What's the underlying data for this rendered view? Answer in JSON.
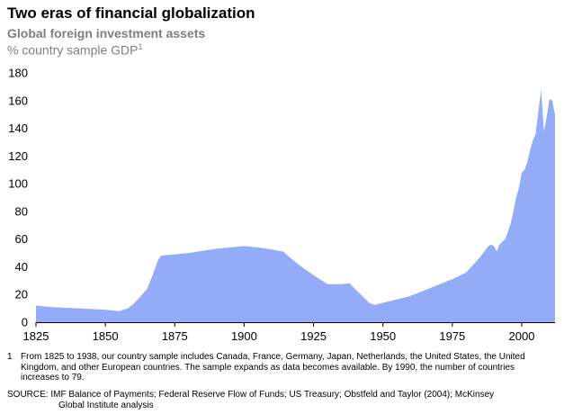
{
  "title": "Two eras of financial globalization",
  "subtitle": "Global foreign investment assets",
  "units": {
    "text": "% country sample GDP",
    "footnote_marker": "1"
  },
  "footnote": {
    "marker": "1",
    "text": "From 1825 to 1938, our country sample includes Canada, France, Germany, Japan, Netherlands, the United States, the United Kingdom, and other European countries. The sample expands as data becomes available. By 1990, the number of countries increases to 79."
  },
  "source": {
    "label": "SOURCE:",
    "line1": "IMF Balance of Payments; Federal Reserve Flow of Funds; US Treasury; Obstfeld and Taylor (2004); McKinsey",
    "line2": "Global Institute analysis"
  },
  "colors": {
    "area": "#94abf7",
    "axis": "#000000",
    "subtitle": "#7f7f7f"
  },
  "chart_data": {
    "type": "area",
    "title": "Two eras of financial globalization",
    "subtitle": "Global foreign investment assets",
    "ylabel": "% country sample GDP",
    "xlim": [
      1825,
      2012
    ],
    "ylim": [
      0,
      180
    ],
    "x_ticks": [
      1825,
      1850,
      1875,
      1900,
      1925,
      1950,
      1975,
      2000
    ],
    "y_ticks": [
      0,
      20,
      40,
      60,
      80,
      100,
      120,
      140,
      160,
      180
    ],
    "grid": false,
    "x": [
      1825,
      1830,
      1840,
      1850,
      1855,
      1858,
      1860,
      1862,
      1865,
      1867,
      1869,
      1870,
      1875,
      1880,
      1885,
      1890,
      1895,
      1900,
      1905,
      1910,
      1914,
      1917,
      1920,
      1925,
      1930,
      1935,
      1938,
      1940,
      1943,
      1945,
      1947,
      1950,
      1955,
      1960,
      1965,
      1970,
      1975,
      1980,
      1985,
      1988,
      1989,
      1990,
      1991,
      1992,
      1993,
      1994,
      1995,
      1996,
      1997,
      1998,
      1999,
      2000,
      2001,
      2002,
      2003,
      2004,
      2005,
      2006,
      2007,
      2008,
      2009,
      2010,
      2011,
      2012
    ],
    "values": [
      12,
      11,
      10,
      9,
      8,
      10,
      13,
      17,
      24,
      34,
      45,
      48,
      49,
      50,
      51.5,
      53,
      54,
      55,
      54,
      52.5,
      51,
      46,
      41,
      34,
      27.5,
      27.5,
      28,
      24,
      18,
      14,
      12.5,
      14,
      16.5,
      19,
      23,
      27,
      31,
      36,
      47,
      55,
      56,
      55,
      51,
      56,
      58,
      60,
      65,
      71,
      80,
      90,
      97,
      108,
      110,
      115,
      124,
      131,
      136,
      152,
      168,
      138,
      148,
      161,
      160,
      150
    ]
  }
}
